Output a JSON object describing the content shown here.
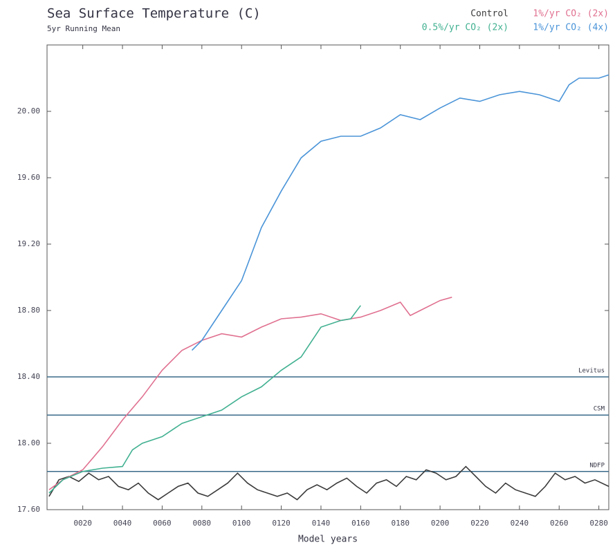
{
  "chart_data": {
    "type": "line",
    "title": "Sea Surface Temperature (C)",
    "subtitle": "5yr Running Mean",
    "x_label": "Model years",
    "xlim": [
      2,
      285
    ],
    "ylim": [
      17.6,
      20.4
    ],
    "xticks": [
      {
        "value": 20,
        "label": "0020"
      },
      {
        "value": 40,
        "label": "0040"
      },
      {
        "value": 60,
        "label": "0060"
      },
      {
        "value": 80,
        "label": "0080"
      },
      {
        "value": 100,
        "label": "0100"
      },
      {
        "value": 120,
        "label": "0120"
      },
      {
        "value": 140,
        "label": "0140"
      },
      {
        "value": 160,
        "label": "0160"
      },
      {
        "value": 180,
        "label": "0180"
      },
      {
        "value": 200,
        "label": "0200"
      },
      {
        "value": 220,
        "label": "0220"
      },
      {
        "value": 240,
        "label": "0240"
      },
      {
        "value": 260,
        "label": "0260"
      },
      {
        "value": 280,
        "label": "0280"
      }
    ],
    "yticks": [
      {
        "value": 17.6,
        "label": "17.60"
      },
      {
        "value": 18.0,
        "label": "18.00"
      },
      {
        "value": 18.4,
        "label": "18.40"
      },
      {
        "value": 18.8,
        "label": "18.80"
      },
      {
        "value": 19.2,
        "label": "19.20"
      },
      {
        "value": 19.6,
        "label": "19.60"
      },
      {
        "value": 20.0,
        "label": "20.00"
      }
    ],
    "reference_lines": [
      {
        "label": "Levitus",
        "value": 18.4,
        "color": "#3a6a8a"
      },
      {
        "label": "CSM",
        "value": 18.17,
        "color": "#3a6a8a"
      },
      {
        "label": "NDFP",
        "value": 17.83,
        "color": "#3a6a8a"
      }
    ],
    "series": [
      {
        "name": "Control",
        "color": "#3a3a3a",
        "x": [
          3,
          8,
          13,
          18,
          23,
          28,
          33,
          38,
          43,
          48,
          53,
          58,
          63,
          68,
          73,
          78,
          83,
          88,
          93,
          98,
          103,
          108,
          113,
          118,
          123,
          128,
          133,
          138,
          143,
          148,
          153,
          158,
          163,
          168,
          173,
          178,
          183,
          188,
          193,
          198,
          203,
          208,
          213,
          218,
          223,
          228,
          233,
          238,
          243,
          248,
          253,
          258,
          263,
          268,
          273,
          278,
          285
        ],
        "values": [
          17.68,
          17.78,
          17.8,
          17.77,
          17.82,
          17.78,
          17.8,
          17.74,
          17.72,
          17.76,
          17.7,
          17.66,
          17.7,
          17.74,
          17.76,
          17.7,
          17.68,
          17.72,
          17.76,
          17.82,
          17.76,
          17.72,
          17.7,
          17.68,
          17.7,
          17.66,
          17.72,
          17.75,
          17.72,
          17.76,
          17.79,
          17.74,
          17.7,
          17.76,
          17.78,
          17.74,
          17.8,
          17.78,
          17.84,
          17.82,
          17.78,
          17.8,
          17.86,
          17.8,
          17.74,
          17.7,
          17.76,
          17.72,
          17.7,
          17.68,
          17.74,
          17.82,
          17.78,
          17.8,
          17.76,
          17.78,
          17.74
        ]
      },
      {
        "name": "1%/yr CO₂ (2x)",
        "color": "#e07090",
        "x": [
          3,
          10,
          20,
          30,
          40,
          50,
          60,
          70,
          80,
          90,
          100,
          110,
          120,
          130,
          140,
          150,
          160,
          170,
          180,
          185,
          190,
          200,
          206
        ],
        "values": [
          17.72,
          17.78,
          17.84,
          17.98,
          18.14,
          18.28,
          18.44,
          18.56,
          18.62,
          18.66,
          18.64,
          18.7,
          18.75,
          18.76,
          18.78,
          18.74,
          18.76,
          18.8,
          18.85,
          18.77,
          18.8,
          18.86,
          18.88
        ]
      },
      {
        "name": "0.5%/yr CO₂ (2x)",
        "color": "#40b090",
        "x": [
          3,
          10,
          20,
          30,
          40,
          45,
          50,
          60,
          70,
          80,
          90,
          100,
          110,
          120,
          130,
          140,
          150,
          155,
          160
        ],
        "values": [
          17.7,
          17.78,
          17.83,
          17.85,
          17.86,
          17.96,
          18.0,
          18.04,
          18.12,
          18.16,
          18.2,
          18.28,
          18.34,
          18.44,
          18.52,
          18.7,
          18.74,
          18.75,
          18.83
        ]
      },
      {
        "name": "1%/yr CO₂ (4x)",
        "color": "#4a94d8",
        "x": [
          75,
          80,
          90,
          100,
          110,
          120,
          130,
          140,
          150,
          160,
          170,
          180,
          190,
          200,
          210,
          220,
          230,
          240,
          250,
          260,
          265,
          270,
          280,
          285
        ],
        "values": [
          18.56,
          18.62,
          18.8,
          18.98,
          19.3,
          19.52,
          19.72,
          19.82,
          19.85,
          19.85,
          19.9,
          19.98,
          19.95,
          20.02,
          20.08,
          20.06,
          20.1,
          20.12,
          20.1,
          20.06,
          20.16,
          20.2,
          20.2,
          20.22
        ]
      }
    ]
  }
}
